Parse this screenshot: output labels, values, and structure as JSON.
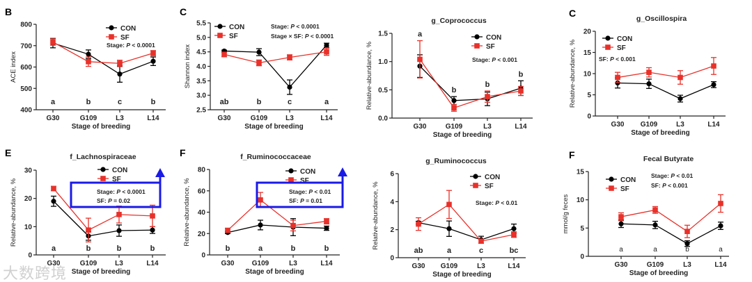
{
  "watermark": "大数跨境",
  "chart_data": [
    {
      "type": "line",
      "panel_letter": "B",
      "title": "",
      "xlabel": "Stage of breeding",
      "ylabel": "ACE index",
      "categories": [
        "G30",
        "G109",
        "L3",
        "L14"
      ],
      "ylim": [
        400,
        800
      ],
      "yticks": [
        400,
        500,
        600,
        700,
        800
      ],
      "series": [
        {
          "name": "CON",
          "color": "#000000",
          "values": [
            712,
            660,
            567,
            627
          ],
          "errors": [
            22,
            20,
            38,
            20
          ]
        },
        {
          "name": "SF",
          "color": "#e8312a",
          "values": [
            717,
            625,
            617,
            665
          ],
          "errors": [
            15,
            22,
            15,
            12
          ]
        }
      ],
      "sig_letters": [
        "a",
        "b",
        "c",
        "b"
      ],
      "annotations": [
        [
          "Stage: ",
          "P",
          " < 0.0001"
        ]
      ]
    },
    {
      "type": "line",
      "panel_letter": "C",
      "title": "",
      "xlabel": "Stage of breeding",
      "ylabel": "Shannon index",
      "categories": [
        "G30",
        "G109",
        "L3",
        "L14"
      ],
      "ylim": [
        2.5,
        5.5
      ],
      "yticks": [
        "2.5",
        "3.0",
        "3.5",
        "4.0",
        "4.5",
        "5.0",
        "5.5"
      ],
      "series": [
        {
          "name": "CON",
          "color": "#000000",
          "values": [
            4.53,
            4.49,
            3.28,
            4.73
          ],
          "errors": [
            0.03,
            0.12,
            0.25,
            0.07
          ]
        },
        {
          "name": "SF",
          "color": "#e8312a",
          "values": [
            4.41,
            4.12,
            4.31,
            4.5
          ],
          "errors": [
            0.08,
            0.1,
            0.09,
            0.12
          ]
        }
      ],
      "sig_letters": [
        "ab",
        "b",
        "c",
        "a"
      ],
      "annotations": [
        [
          "Stage: ",
          "P",
          " < 0.0001"
        ],
        [
          "Stage × SF: ",
          "P",
          " < 0.0001"
        ]
      ]
    },
    {
      "type": "line",
      "panel_letter": "",
      "title": "g_Coprococcus",
      "xlabel": "Stage of breeding",
      "ylabel": "Relative-abundance, %",
      "categories": [
        "G30",
        "G109",
        "L3",
        "L14"
      ],
      "ylim": [
        0,
        1.5
      ],
      "yticks": [
        "0.0",
        "0.5",
        "1.0",
        "1.5"
      ],
      "series": [
        {
          "name": "CON",
          "color": "#000000",
          "values": [
            0.92,
            0.31,
            0.34,
            0.53
          ],
          "errors": [
            0.2,
            0.07,
            0.12,
            0.13
          ]
        },
        {
          "name": "SF",
          "color": "#e8312a",
          "values": [
            1.04,
            0.18,
            0.38,
            0.48
          ],
          "errors": [
            0.33,
            0.06,
            0.1,
            0.08
          ]
        }
      ],
      "sig_letters": [
        "a",
        "b",
        "b",
        "b"
      ],
      "annotations": [
        [
          "Stage: ",
          "P",
          " < 0.001"
        ]
      ]
    },
    {
      "type": "line",
      "panel_letter": "C",
      "title": "g_Oscillospira",
      "xlabel": "Stage of breeding",
      "ylabel": "Relative-abundance, %",
      "categories": [
        "G30",
        "G109",
        "L3",
        "L14"
      ],
      "ylim": [
        0,
        20
      ],
      "yticks": [
        "0",
        "5",
        "10",
        "15",
        "20"
      ],
      "series": [
        {
          "name": "CON",
          "color": "#000000",
          "values": [
            7.8,
            7.6,
            4.1,
            7.4
          ],
          "errors": [
            1.2,
            1.1,
            0.8,
            0.7
          ]
        },
        {
          "name": "SF",
          "color": "#e8312a",
          "values": [
            9.1,
            10.3,
            9.1,
            11.8
          ],
          "errors": [
            1.2,
            1.1,
            1.6,
            2.0
          ]
        }
      ],
      "sig_letters": [],
      "annotations": [
        [
          "SF: ",
          "P",
          " < 0.001"
        ]
      ]
    },
    {
      "type": "line",
      "panel_letter": "E",
      "title": "f_Lachnospiraceae",
      "xlabel": "Stage of breeding",
      "ylabel": "Relative-abundance, %",
      "categories": [
        "G30",
        "G109",
        "L3",
        "L14"
      ],
      "ylim": [
        0,
        30
      ],
      "yticks": [
        "0",
        "10",
        "20",
        "30"
      ],
      "series": [
        {
          "name": "CON",
          "color": "#000000",
          "values": [
            19,
            6.7,
            8.6,
            8.8
          ],
          "errors": [
            1.8,
            1.5,
            2,
            1.2
          ]
        },
        {
          "name": "SF",
          "color": "#e8312a",
          "values": [
            23.5,
            8.8,
            14.3,
            13.8
          ],
          "errors": [
            0.8,
            4.2,
            3,
            3.8
          ]
        }
      ],
      "sig_letters": [
        "a",
        "b",
        "b",
        "b"
      ],
      "annotations": [
        [
          "Stage: ",
          "P",
          " < 0.0001"
        ],
        [
          "SF: ",
          "P",
          " = 0.02"
        ]
      ],
      "highlight_box": true
    },
    {
      "type": "line",
      "panel_letter": "F",
      "title": "f_Ruminococcaceae",
      "xlabel": "Stage of breeding",
      "ylabel": "Relative-abundance, %",
      "categories": [
        "G30",
        "G109",
        "L3",
        "L14"
      ],
      "ylim": [
        0,
        80
      ],
      "yticks": [
        "0",
        "20",
        "40",
        "60",
        "80"
      ],
      "series": [
        {
          "name": "CON",
          "color": "#000000",
          "values": [
            21,
            28,
            26,
            25
          ],
          "errors": [
            1,
            4.5,
            8,
            2
          ]
        },
        {
          "name": "SF",
          "color": "#e8312a",
          "values": [
            23,
            51.5,
            27.5,
            31.5
          ],
          "errors": [
            2,
            7,
            5,
            2.5
          ]
        }
      ],
      "sig_letters": [
        "b",
        "a",
        "b",
        "b"
      ],
      "annotations": [
        [
          "Stage: ",
          "P",
          " < 0.01"
        ],
        [
          "SF: ",
          "P",
          " = 0.01"
        ]
      ],
      "highlight_box": true
    },
    {
      "type": "line",
      "panel_letter": "",
      "title": "g_Ruminococcus",
      "xlabel": "Stage of breeding",
      "ylabel": "Relative-abundance, %",
      "categories": [
        "G30",
        "G109",
        "L3",
        "L14"
      ],
      "ylim": [
        0,
        6
      ],
      "yticks": [
        "0",
        "2",
        "4",
        "6"
      ],
      "series": [
        {
          "name": "CON",
          "color": "#000000",
          "values": [
            2.5,
            2.07,
            1.28,
            2.07
          ],
          "errors": [
            0.1,
            0.55,
            0.25,
            0.33
          ]
        },
        {
          "name": "SF",
          "color": "#e8312a",
          "values": [
            2.4,
            3.8,
            1.18,
            1.65
          ],
          "errors": [
            0.45,
            1.0,
            0.15,
            0.2
          ]
        }
      ],
      "sig_letters": [
        "ab",
        "a",
        "c",
        "bc"
      ],
      "annotations": [
        [
          "Stage: ",
          "P",
          " < 0.01"
        ]
      ]
    },
    {
      "type": "line",
      "panel_letter": "F",
      "title": "Fecal Butyrate",
      "xlabel": "Stage of breeding",
      "ylabel": "mmol/g feces",
      "categories": [
        "G30",
        "G109",
        "L3",
        "L14"
      ],
      "ylim": [
        0,
        15
      ],
      "yticks": [
        "0",
        "5",
        "10",
        "15"
      ],
      "series": [
        {
          "name": "CON",
          "color": "#000000",
          "values": [
            5.75,
            5.55,
            2.25,
            5.4
          ],
          "errors": [
            0.65,
            0.65,
            0.5,
            0.65
          ]
        },
        {
          "name": "SF",
          "color": "#e8312a",
          "values": [
            7.0,
            8.2,
            4.4,
            9.35
          ],
          "errors": [
            0.7,
            0.6,
            1.1,
            1.55
          ]
        }
      ],
      "sig_letters": [
        "a",
        "a",
        "b",
        "a"
      ],
      "annotations": [
        [
          "Stage: ",
          "P",
          " < 0.01"
        ],
        [
          "SF: ",
          "P",
          " < 0.001"
        ]
      ]
    }
  ]
}
